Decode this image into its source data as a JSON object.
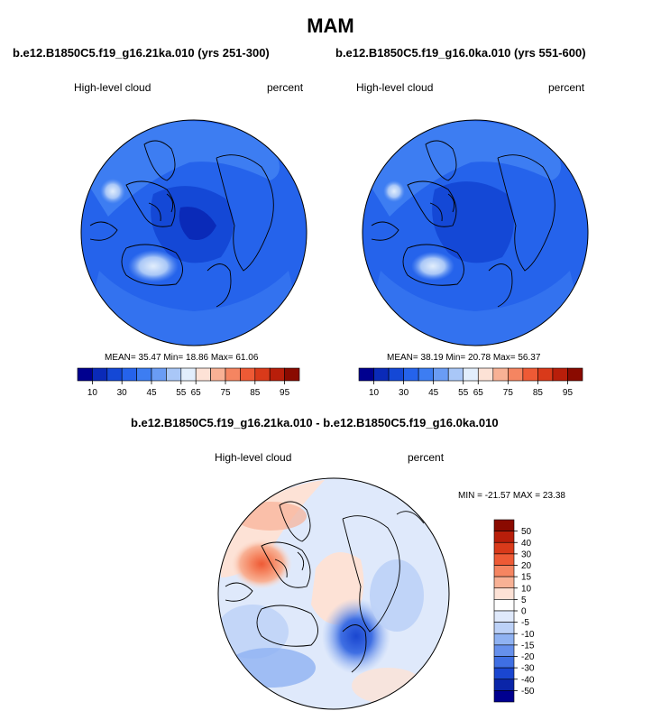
{
  "main_title": "MAM",
  "colors": {
    "abs_levels": [
      "#00008f",
      "#0a2ab8",
      "#1448d6",
      "#2563eb",
      "#3d7df2",
      "#6a9cf4",
      "#a9c7f7",
      "#e2eefc",
      "#fde2d6",
      "#f8b195",
      "#f58561",
      "#ee5a35",
      "#d93a1a",
      "#b81e0a",
      "#8a0a00"
    ],
    "diff_levels": [
      "#8a0a00",
      "#b81e0a",
      "#d93a1a",
      "#ee5a35",
      "#f58561",
      "#f8b195",
      "#fde2d6",
      "#ffffff",
      "#dfe9fb",
      "#bcd1f7",
      "#8fb2f2",
      "#6690ec",
      "#3f6fe3",
      "#1a46d0",
      "#0a25a8",
      "#00008f"
    ],
    "land_outline": "#000000"
  },
  "chart_data": [
    {
      "type": "heatmap",
      "projection": "north-polar-stereographic",
      "title": "b.e12.B1850C5.f19_g16.21ka.010 (yrs 251-300)",
      "left_label": "High-level cloud",
      "right_label": "percent",
      "stats": {
        "mean": 35.47,
        "min": 18.86,
        "max": 61.06
      },
      "stats_text": "MEAN=  35.47  Min=  18.86  Max=  61.06",
      "colorbar_ticks": [
        "10",
        "30",
        "45",
        "55",
        "65",
        "75",
        "85",
        "95"
      ]
    },
    {
      "type": "heatmap",
      "projection": "north-polar-stereographic",
      "title": "b.e12.B1850C5.f19_g16.0ka.010 (yrs 551-600)",
      "left_label": "High-level cloud",
      "right_label": "percent",
      "stats": {
        "mean": 38.19,
        "min": 20.78,
        "max": 56.37
      },
      "stats_text": "MEAN=  38.19  Min=  20.78  Max=  56.37",
      "colorbar_ticks": [
        "10",
        "30",
        "45",
        "55",
        "65",
        "75",
        "85",
        "95"
      ]
    },
    {
      "type": "heatmap",
      "projection": "north-polar-stereographic",
      "title": "b.e12.B1850C5.f19_g16.21ka.010 - b.e12.B1850C5.f19_g16.0ka.010",
      "left_label": "High-level cloud",
      "right_label": "percent",
      "stats": {
        "min": -21.57,
        "max": 23.38
      },
      "stats_text": "MIN = -21.57 MAX =  23.38",
      "colorbar_ticks": [
        "50",
        "40",
        "30",
        "20",
        "15",
        "10",
        "5",
        "0",
        "-5",
        "-10",
        "-15",
        "-20",
        "-30",
        "-40",
        "-50"
      ]
    }
  ]
}
